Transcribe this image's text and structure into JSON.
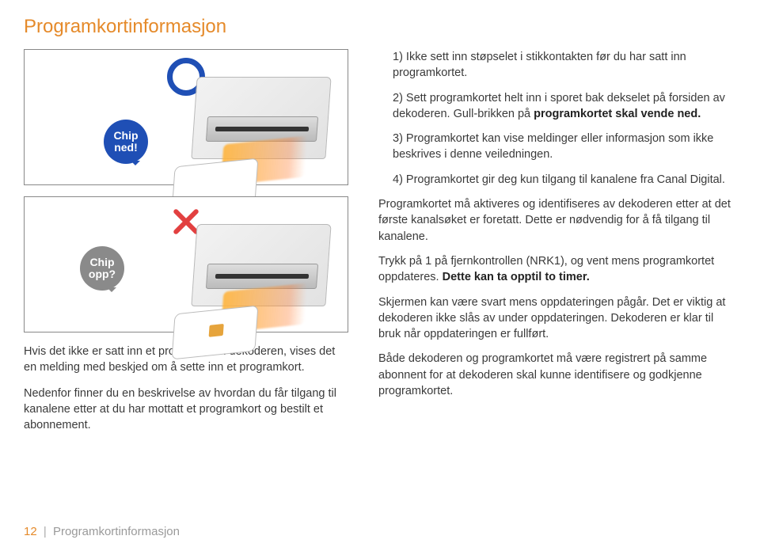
{
  "title": "Programkortinformasjon",
  "title_color": "#e58a2a",
  "figure1": {
    "bubble_line1": "Chip",
    "bubble_line2": "ned!",
    "bubble_color": "#1f4fb5",
    "symbol_color": "#1f4fb5",
    "chip_color": "transparent"
  },
  "figure2": {
    "bubble_line1": "Chip",
    "bubble_line2": "opp?",
    "bubble_color": "#8a8a8a",
    "symbol_color": "#e24040",
    "chip_color": "#e6a43c"
  },
  "left_paragraphs": [
    "Hvis det ikke er satt inn et programkort i dekoderen, vises det en melding med beskjed om å sette inn et programkort.",
    "Nedenfor finner du en beskrivelse av hvordan du får tilgang til kanalene etter at du har mottatt et programkort og bestilt et abonnement."
  ],
  "right_paragraphs": [
    {
      "text": "1) Ikke sett inn støpselet i stikkontakten før du har satt inn programkortet.",
      "indent": true
    },
    {
      "html": "2) Sett programkortet helt inn i sporet bak dekselet på forsiden av dekoderen. Gull-brikken på <span class=\"bold\">programkortet skal vende ned.</span>",
      "indent": true
    },
    {
      "text": "3) Programkortet kan vise meldinger eller informasjon som ikke beskrives i denne veiledningen.",
      "indent": true
    },
    {
      "text": "4) Programkortet gir deg kun tilgang til kanalene fra Canal Digital.",
      "indent": true
    },
    {
      "text": "Programkortet må aktiveres og identifiseres av dekoderen etter at det første kanalsøket er foretatt. Dette er nødvendig for å få tilgang til kanalene."
    },
    {
      "html": "Trykk på 1 på fjernkontrollen (NRK1), og vent mens programkortet oppdateres. <span class=\"bold\">Dette kan ta opptil to timer.</span>"
    },
    {
      "text": "Skjermen kan være svart mens oppdateringen pågår. Det er viktig at dekoderen ikke slås av under oppdateringen. Dekoderen er klar til bruk når oppdateringen er fullført."
    },
    {
      "text": "Både dekoderen og programkortet må være registrert på samme abonnent for at dekoderen skal kunne identifisere og godkjenne programkortet."
    }
  ],
  "footer": {
    "page_number": "12",
    "section": "Programkortinformasjon",
    "page_color": "#e58a2a",
    "section_color": "#9a9a9a"
  }
}
